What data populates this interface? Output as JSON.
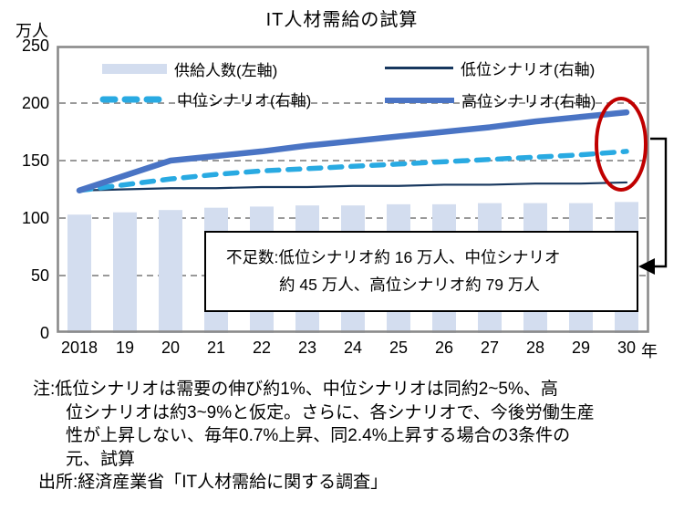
{
  "chart_data": {
    "type": "bar+line",
    "title": "IT人材需給の試算",
    "unit_label": "万人",
    "categories": [
      "2018",
      "19",
      "20",
      "21",
      "22",
      "23",
      "24",
      "25",
      "26",
      "27",
      "28",
      "29",
      "30"
    ],
    "x_suffix": "年",
    "y_ticks": [
      250,
      200,
      150,
      100,
      50,
      0
    ],
    "ylim": [
      0,
      250
    ],
    "grid_values": [
      200,
      150,
      100,
      50
    ],
    "legend_position": "top-inside",
    "bar_series": {
      "name": "供給人数(左軸)",
      "values": [
        103,
        105,
        107,
        109,
        110,
        111,
        111,
        112,
        112,
        113,
        113,
        113,
        114
      ]
    },
    "line_series": [
      {
        "name": "低位シナリオ(右軸)",
        "style": "solid-thin",
        "values": [
          124,
          125,
          126,
          126,
          127,
          127,
          128,
          128,
          129,
          129,
          130,
          130,
          131
        ]
      },
      {
        "name": "中位シナリオ(右軸)",
        "style": "dashed",
        "values": [
          124,
          129,
          134,
          138,
          141,
          143,
          145,
          147,
          149,
          151,
          153,
          155,
          158
        ]
      },
      {
        "name": "高位シナリオ(右軸)",
        "style": "solid-thick",
        "values": [
          124,
          137,
          150,
          154,
          158,
          163,
          167,
          171,
          175,
          179,
          184,
          188,
          192
        ]
      }
    ]
  },
  "annotation_box": {
    "line1": "不足数:低位シナリオ約 16 万人、中位シナリオ",
    "line2": "約 45 万人、高位シナリオ約 79 万人"
  },
  "notes": {
    "l1": "注:低位シナリオは需要の伸び約1%、中位シナリオは同約2~5%、高",
    "l2": "位シナリオは約3~9%と仮定。さらに、各シナリオで、今後労働生産",
    "l3": "性が上昇しない、毎年0.7%上昇、同2.4%上昇する場合の3条件の",
    "l4": "元、試算",
    "source": "出所:経済産業省「IT人材需給に関する調査」"
  },
  "colors": {
    "supply_bar": "#d3ddef",
    "low_line": "#17375e",
    "mid_line": "#29aae2",
    "high_line": "#4a74c4",
    "grid": "#999999",
    "plot_border": "#8a8a8a",
    "highlight_ellipse": "#c00000",
    "arrow": "#000000"
  }
}
